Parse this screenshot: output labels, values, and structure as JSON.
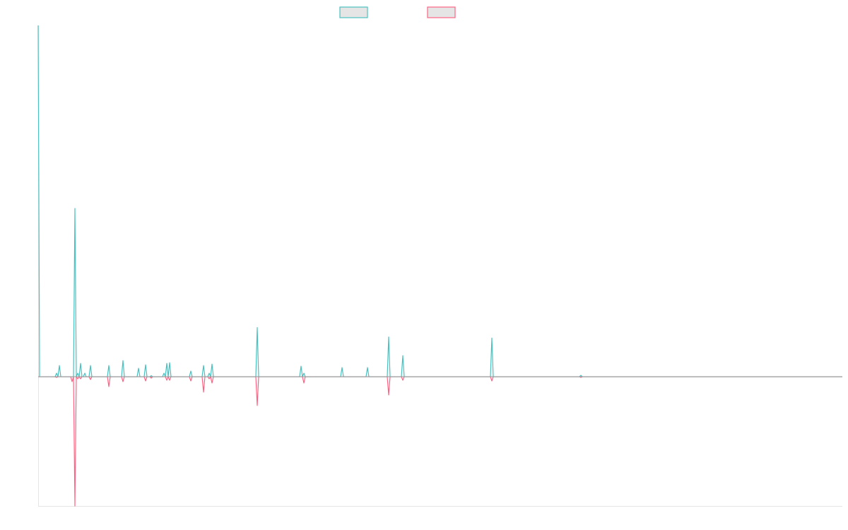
{
  "chart_data": {
    "type": "line",
    "title": "",
    "xlabel": "",
    "ylabel": "",
    "xlim": [
      0,
      569
    ],
    "ylim": [
      -36.8,
      100
    ],
    "grid": false,
    "legend": "top-center",
    "zero_line_color": "#999999",
    "default_value": 0,
    "series": [
      {
        "color": "#4bc0c0",
        "x": [
          0,
          13,
          15,
          26,
          28,
          30,
          33,
          37,
          50,
          60,
          71,
          76,
          80,
          89,
          91,
          93,
          108,
          117,
          121,
          123,
          155,
          186,
          188,
          215,
          233,
          248,
          258,
          321,
          384
        ],
        "y": [
          100,
          1,
          3.2,
          47.9,
          1,
          3.8,
          1,
          3.2,
          3.2,
          4.6,
          2.4,
          3.4,
          0.3,
          1,
          3.8,
          4,
          1.6,
          3.2,
          1,
          3.6,
          14,
          3,
          1,
          2.6,
          2.6,
          11.3,
          6,
          11,
          0.4
        ]
      },
      {
        "color": "#ff6384",
        "x": [
          13,
          24,
          26,
          28,
          30,
          37,
          50,
          60,
          76,
          80,
          91,
          93,
          108,
          117,
          121,
          123,
          155,
          188,
          248,
          258,
          321,
          384
        ],
        "y": [
          -0.2,
          -1.4,
          -36.8,
          -0.6,
          -0.6,
          -0.8,
          -2.8,
          -1.4,
          -1.2,
          -0.4,
          -1,
          -1,
          -1.2,
          -4.4,
          -0.6,
          -1.8,
          -8.2,
          -1.8,
          -5.2,
          -1,
          -1.2,
          -0.2
        ]
      }
    ]
  }
}
